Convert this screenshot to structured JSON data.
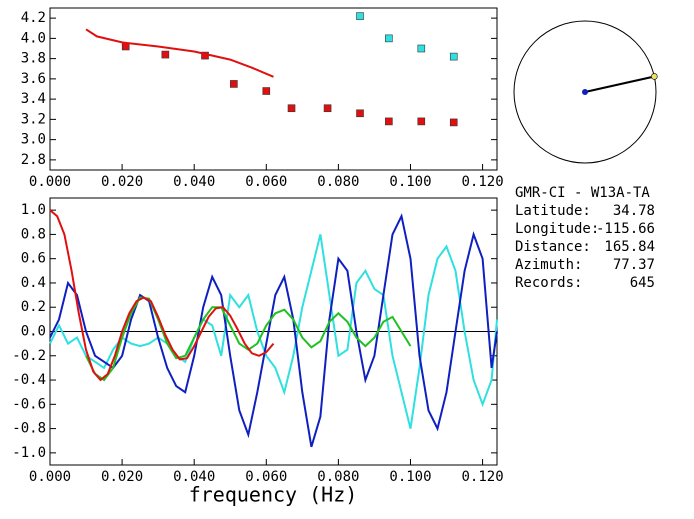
{
  "chart_data": [
    {
      "type": "scatter",
      "xlim": [
        0,
        0.124
      ],
      "ylim": [
        2.7,
        4.3
      ],
      "xticks": [
        {
          "value": 0,
          "label": "0.000"
        },
        {
          "value": 0.02,
          "label": "0.020"
        },
        {
          "value": 0.04,
          "label": "0.040"
        },
        {
          "value": 0.06,
          "label": "0.060"
        },
        {
          "value": 0.08,
          "label": "0.080"
        },
        {
          "value": 0.1,
          "label": "0.100"
        },
        {
          "value": 0.12,
          "label": "0.120"
        }
      ],
      "yticks": [
        {
          "value": 2.8,
          "label": "2.8"
        },
        {
          "value": 3.0,
          "label": "3.0"
        },
        {
          "value": 3.2,
          "label": "3.2"
        },
        {
          "value": 3.4,
          "label": "3.4"
        },
        {
          "value": 3.6,
          "label": "3.6"
        },
        {
          "value": 3.8,
          "label": "3.8"
        },
        {
          "value": 4.0,
          "label": "4.0"
        },
        {
          "value": 4.2,
          "label": "4.2"
        }
      ],
      "series": [
        {
          "color": "#e01010",
          "mode": "markers",
          "x": [
            0.021,
            0.032,
            0.043,
            0.051,
            0.06,
            0.067,
            0.077,
            0.086,
            0.094,
            0.103,
            0.112
          ],
          "values": [
            3.92,
            3.84,
            3.83,
            3.55,
            3.48,
            3.31,
            3.31,
            3.26,
            3.18,
            3.18,
            3.17
          ]
        },
        {
          "color": "#30e0e0",
          "mode": "markers",
          "x": [
            0.086,
            0.094,
            0.103,
            0.112
          ],
          "values": [
            4.22,
            4.0,
            3.9,
            3.82
          ]
        },
        {
          "color": "#e01010",
          "mode": "lines",
          "x": [
            0.01,
            0.013,
            0.02,
            0.03,
            0.04,
            0.05,
            0.056,
            0.062
          ],
          "values": [
            4.09,
            4.02,
            3.96,
            3.92,
            3.87,
            3.79,
            3.71,
            3.62
          ]
        }
      ]
    },
    {
      "type": "line",
      "x_label": "frequency (Hz)",
      "xlim": [
        0,
        0.124
      ],
      "ylim": [
        -1.1,
        1.1
      ],
      "zero_line": true,
      "xticks": [
        {
          "value": 0,
          "label": "0.000"
        },
        {
          "value": 0.02,
          "label": "0.020"
        },
        {
          "value": 0.04,
          "label": "0.040"
        },
        {
          "value": 0.06,
          "label": "0.060"
        },
        {
          "value": 0.08,
          "label": "0.080"
        },
        {
          "value": 0.1,
          "label": "0.100"
        },
        {
          "value": 0.12,
          "label": "0.120"
        }
      ],
      "yticks": [
        {
          "value": -1.0,
          "label": "-1.0"
        },
        {
          "value": -0.8,
          "label": "-0.8"
        },
        {
          "value": -0.6,
          "label": "-0.6"
        },
        {
          "value": -0.4,
          "label": "-0.4"
        },
        {
          "value": -0.2,
          "label": "-0.2"
        },
        {
          "value": 0,
          "label": "0.0"
        },
        {
          "value": 0.2,
          "label": "0.2"
        },
        {
          "value": 0.4,
          "label": "0.4"
        },
        {
          "value": 0.6,
          "label": "0.6"
        },
        {
          "value": 0.8,
          "label": "0.8"
        },
        {
          "value": 1.0,
          "label": "1.0"
        }
      ],
      "series": [
        {
          "color": "#30e0e0",
          "x": [
            0,
            0.0025,
            0.005,
            0.0075,
            0.01,
            0.0125,
            0.015,
            0.0175,
            0.02,
            0.0225,
            0.025,
            0.0275,
            0.03,
            0.0325,
            0.035,
            0.0375,
            0.04,
            0.0425,
            0.045,
            0.0475,
            0.05,
            0.0525,
            0.055,
            0.0575,
            0.06,
            0.0625,
            0.065,
            0.0675,
            0.07,
            0.0725,
            0.075,
            0.0775,
            0.08,
            0.0825,
            0.085,
            0.0875,
            0.09,
            0.0925,
            0.095,
            0.0975,
            0.1,
            0.1025,
            0.105,
            0.1075,
            0.11,
            0.1125,
            0.115,
            0.1175,
            0.12,
            0.1225,
            0.124
          ],
          "values": [
            -0.1,
            0.05,
            -0.1,
            -0.05,
            -0.2,
            -0.25,
            -0.3,
            -0.15,
            -0.05,
            -0.1,
            -0.12,
            -0.1,
            -0.05,
            -0.1,
            -0.2,
            -0.25,
            -0.05,
            0.1,
            0.05,
            -0.2,
            0.3,
            0.2,
            0.3,
            0.0,
            -0.2,
            -0.3,
            -0.5,
            -0.2,
            0.2,
            0.5,
            0.8,
            0.3,
            -0.2,
            -0.15,
            0.4,
            0.5,
            0.35,
            0.3,
            -0.2,
            -0.5,
            -0.8,
            -0.3,
            0.3,
            0.6,
            0.7,
            0.5,
            0.0,
            -0.4,
            -0.6,
            -0.4,
            0.1
          ]
        },
        {
          "color": "#1020c0",
          "x": [
            0,
            0.0025,
            0.005,
            0.0075,
            0.01,
            0.0125,
            0.015,
            0.0175,
            0.02,
            0.0225,
            0.025,
            0.0275,
            0.03,
            0.0325,
            0.035,
            0.0375,
            0.04,
            0.0425,
            0.045,
            0.0475,
            0.05,
            0.0525,
            0.055,
            0.0575,
            0.06,
            0.0625,
            0.065,
            0.0675,
            0.07,
            0.0725,
            0.075,
            0.0775,
            0.08,
            0.0825,
            0.085,
            0.0875,
            0.09,
            0.0925,
            0.095,
            0.0975,
            0.1,
            0.1025,
            0.105,
            0.1075,
            0.11,
            0.1125,
            0.115,
            0.1175,
            0.12,
            0.1225,
            0.124
          ],
          "values": [
            -0.05,
            0.1,
            0.4,
            0.3,
            0.0,
            -0.2,
            -0.25,
            -0.3,
            -0.2,
            0.1,
            0.3,
            0.25,
            -0.05,
            -0.3,
            -0.45,
            -0.5,
            -0.2,
            0.2,
            0.45,
            0.3,
            -0.2,
            -0.65,
            -0.85,
            -0.5,
            -0.1,
            0.3,
            0.45,
            0.1,
            -0.5,
            -0.95,
            -0.7,
            0.1,
            0.6,
            0.5,
            0.0,
            -0.4,
            -0.2,
            0.3,
            0.8,
            0.95,
            0.6,
            -0.2,
            -0.65,
            -0.8,
            -0.5,
            0.0,
            0.5,
            0.8,
            0.6,
            -0.3,
            0.0
          ]
        },
        {
          "color": "#20c020",
          "x": [
            0.01,
            0.0125,
            0.015,
            0.0175,
            0.02,
            0.0225,
            0.025,
            0.0275,
            0.03,
            0.0325,
            0.035,
            0.0375,
            0.04,
            0.0425,
            0.045,
            0.0475,
            0.05,
            0.0525,
            0.055,
            0.0575,
            0.06,
            0.0625,
            0.065,
            0.0675,
            0.07,
            0.0725,
            0.075,
            0.0775,
            0.08,
            0.0825,
            0.085,
            0.0875,
            0.09,
            0.0925,
            0.095,
            0.0975,
            0.1
          ],
          "values": [
            -0.2,
            -0.35,
            -0.4,
            -0.3,
            -0.05,
            0.15,
            0.28,
            0.27,
            0.1,
            -0.1,
            -0.22,
            -0.2,
            -0.05,
            0.1,
            0.2,
            0.2,
            0.05,
            -0.1,
            -0.15,
            -0.1,
            0.05,
            0.15,
            0.18,
            0.1,
            -0.05,
            -0.13,
            -0.08,
            0.08,
            0.15,
            0.08,
            -0.05,
            -0.12,
            -0.05,
            0.08,
            0.12,
            0.0,
            -0.12
          ]
        },
        {
          "color": "#e01010",
          "x": [
            0,
            0.002,
            0.004,
            0.006,
            0.008,
            0.01,
            0.012,
            0.014,
            0.016,
            0.018,
            0.02,
            0.022,
            0.024,
            0.026,
            0.028,
            0.03,
            0.032,
            0.034,
            0.036,
            0.038,
            0.04,
            0.042,
            0.044,
            0.046,
            0.048,
            0.05,
            0.052,
            0.054,
            0.056,
            0.058,
            0.06,
            0.062
          ],
          "values": [
            1.0,
            0.95,
            0.8,
            0.5,
            0.15,
            -0.15,
            -0.33,
            -0.4,
            -0.35,
            -0.2,
            0.0,
            0.15,
            0.25,
            0.28,
            0.25,
            0.12,
            -0.03,
            -0.15,
            -0.23,
            -0.22,
            -0.12,
            0.0,
            0.12,
            0.19,
            0.2,
            0.13,
            0.02,
            -0.1,
            -0.18,
            -0.2,
            -0.17,
            -0.1
          ]
        }
      ]
    }
  ],
  "station": {
    "name": "GMR-CI  -  W13A-TA",
    "fields": [
      {
        "label": "Latitude:",
        "value": 34.78
      },
      {
        "label": "Longitude:",
        "value": -115.66
      },
      {
        "label": "Distance:",
        "value": 165.84
      },
      {
        "label": "Azimuth:",
        "value": 77.37
      },
      {
        "label": "Records:",
        "value": 645
      }
    ]
  }
}
